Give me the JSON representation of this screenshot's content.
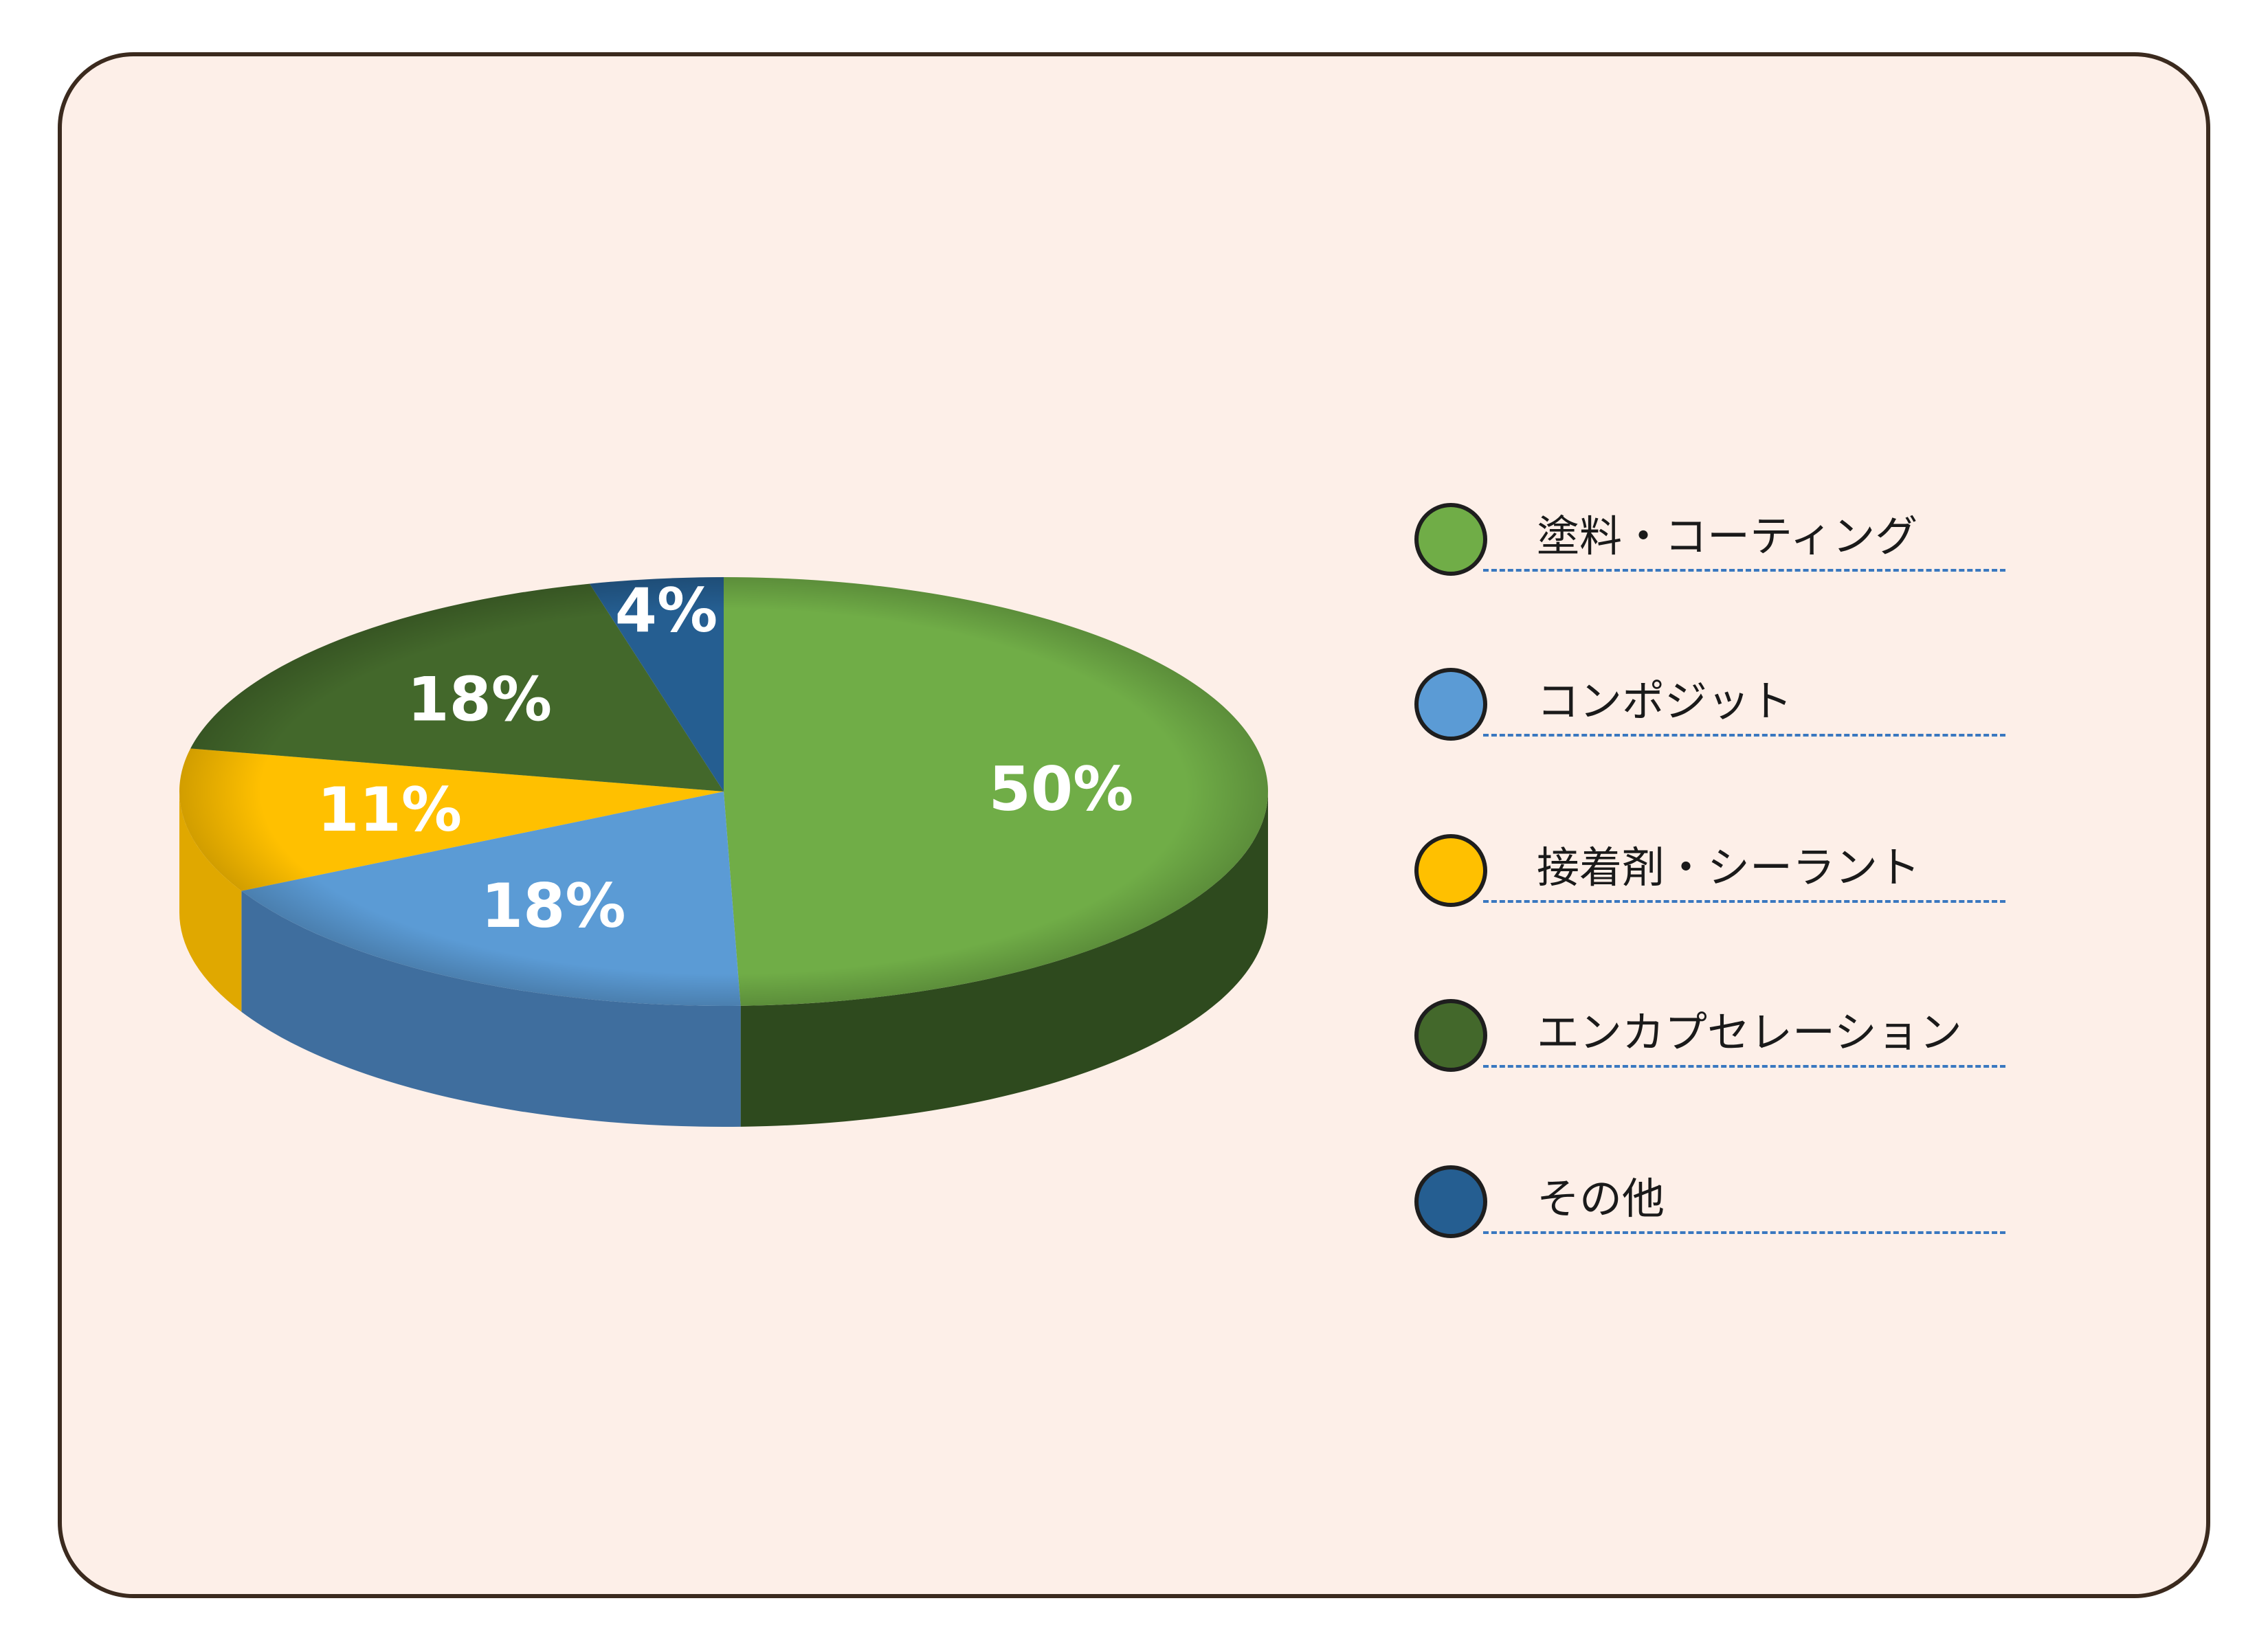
{
  "chart_data": {
    "type": "pie",
    "title": "",
    "legend_position": "right",
    "series": [
      {
        "name": "塗料・コーティング",
        "value": 50,
        "label": "50%",
        "color": "#70ad47",
        "side_color": "#2e4a1e"
      },
      {
        "name": "コンポジット",
        "value": 18,
        "label": "18%",
        "color": "#5b9bd5",
        "side_color": "#3f6e9e"
      },
      {
        "name": "接着剤・シーラント",
        "value": 11,
        "label": "11%",
        "color": "#ffc000",
        "side_color": "#e0a800"
      },
      {
        "name": "エンカプセレーション",
        "value": 18,
        "label": "18%",
        "color": "#43682b",
        "side_color": "#2a4419"
      },
      {
        "name": "その他",
        "value": 4,
        "label": "4%",
        "color": "#255e91",
        "side_color": "#1a4266"
      }
    ]
  }
}
